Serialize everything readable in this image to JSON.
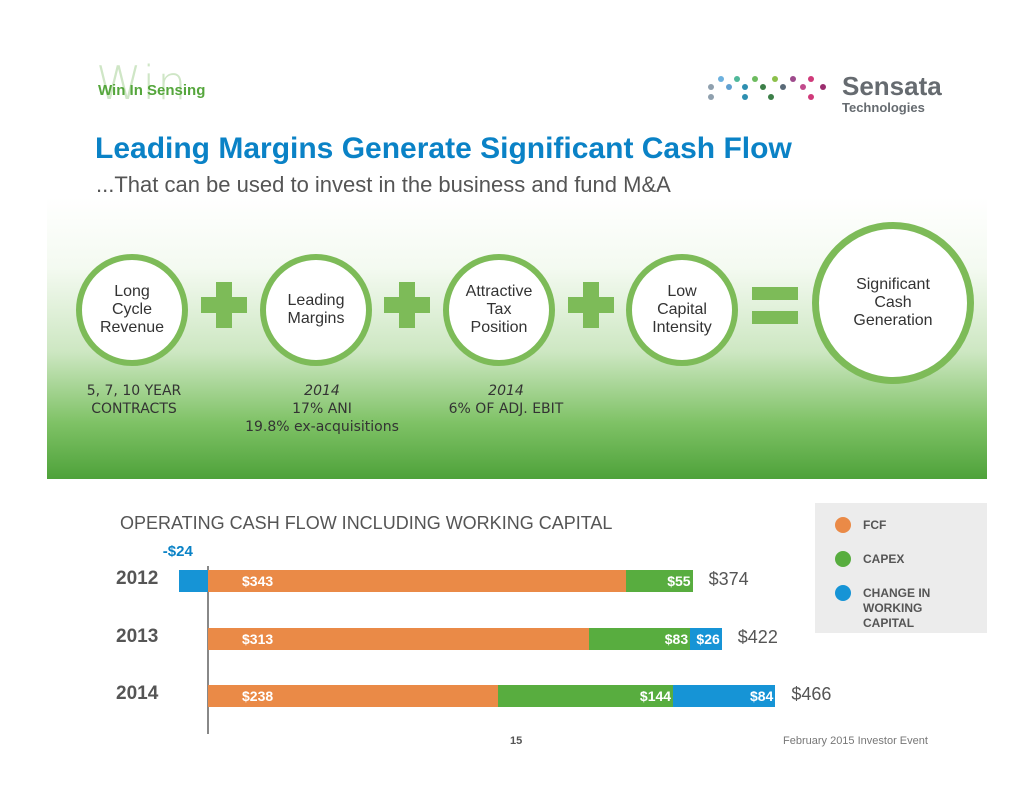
{
  "header": {
    "win_logo_big": "Win",
    "win_logo_small": "Win In Sensing",
    "company_name": "Sensata",
    "company_sub": "Technologies"
  },
  "title": "Leading Margins Generate Significant Cash Flow",
  "subtitle": "...That can be used to invest in the business and fund M&A",
  "circles": [
    {
      "label_lines": [
        "Long",
        "Cycle",
        "Revenue"
      ]
    },
    {
      "label_lines": [
        "Leading",
        "Margins"
      ]
    },
    {
      "label_lines": [
        "Attractive",
        "Tax",
        "Position"
      ]
    },
    {
      "label_lines": [
        "Low",
        "Capital",
        "Intensity"
      ]
    },
    {
      "label_lines": [
        "Significant",
        "Cash",
        "Generation"
      ]
    }
  ],
  "notes": {
    "n1": {
      "line1": "5, 7, 10 YEAR",
      "line2": "CONTRACTS"
    },
    "n2": {
      "year": "2014",
      "line1": "17% ANI",
      "line2": "19.8% ex-acquisitions"
    },
    "n3": {
      "year": "2014",
      "line1": "6% OF ADJ. EBIT"
    }
  },
  "chart_data": {
    "type": "bar",
    "orientation": "horizontal",
    "stacked": true,
    "title": "OPERATING CASH FLOW INCLUDING WORKING CAPITAL",
    "categories": [
      "2012",
      "2013",
      "2014"
    ],
    "series": [
      {
        "name": "FCF",
        "color": "#ea8a47",
        "values": [
          343,
          313,
          238
        ],
        "labels": [
          "$343",
          "$313",
          "$238"
        ]
      },
      {
        "name": "CAPEX",
        "color": "#58ad3f",
        "values": [
          55,
          83,
          144
        ],
        "labels": [
          "$55",
          "$83",
          "$144"
        ]
      },
      {
        "name": "CHANGE IN WORKING CAPITAL",
        "color": "#1694d6",
        "values": [
          -24,
          26,
          84
        ],
        "labels": [
          "-$24",
          "$26",
          "$84"
        ]
      }
    ],
    "totals": [
      "$374",
      "$422",
      "$466"
    ],
    "legend": [
      "FCF",
      "CAPEX",
      "CHANGE IN WORKING CAPITAL"
    ],
    "legend_position": "right"
  },
  "legend_labels": {
    "fcf": "FCF",
    "capex": "CAPEX",
    "wc_line1": "CHANGE IN",
    "wc_line2": "WORKING",
    "wc_line3": "CAPITAL"
  },
  "footer": {
    "page_number": "15",
    "event": "February 2015 Investor Event"
  },
  "colors": {
    "accent_blue": "#0a82c6",
    "green": "#7dbb58",
    "orange": "#ea8a47"
  }
}
